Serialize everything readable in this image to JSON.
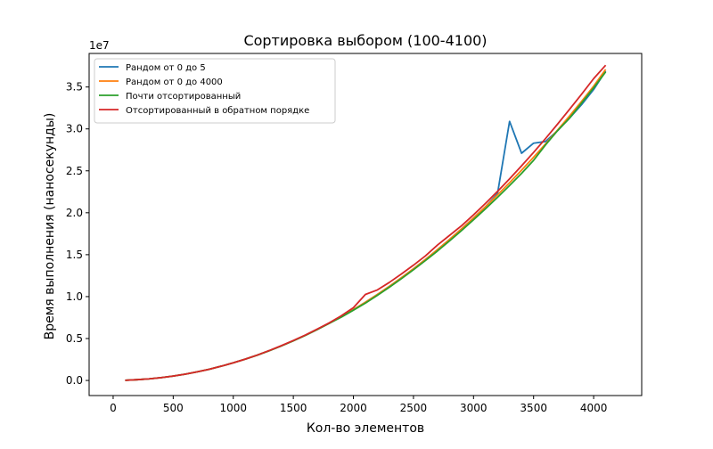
{
  "chart_data": {
    "type": "line",
    "title": "Сортировка выбором (100-4100)",
    "xlabel": "Кол-во элементов",
    "ylabel": "Время выполнения (наносекунды)",
    "y_offset_label": "1e7",
    "y_scale": 10000000,
    "xlim": [
      -200,
      4400
    ],
    "ylim": [
      -1800000,
      39000000
    ],
    "x_ticks": [
      0,
      500,
      1000,
      1500,
      2000,
      2500,
      3000,
      3500,
      4000
    ],
    "x_tick_labels": [
      "0",
      "500",
      "1000",
      "1500",
      "2000",
      "2500",
      "3000",
      "3500",
      "4000"
    ],
    "y_ticks": [
      0,
      5000000,
      10000000,
      15000000,
      20000000,
      25000000,
      30000000,
      35000000
    ],
    "y_tick_labels": [
      "0.0",
      "0.5",
      "1.0",
      "1.5",
      "2.0",
      "2.5",
      "3.0",
      "3.5"
    ],
    "grid": false,
    "legend_position": "upper-left",
    "x": [
      100,
      200,
      300,
      400,
      500,
      600,
      700,
      800,
      900,
      1000,
      1100,
      1200,
      1300,
      1400,
      1500,
      1600,
      1700,
      1800,
      1900,
      2000,
      2100,
      2200,
      2300,
      2400,
      2500,
      2600,
      2700,
      2800,
      2900,
      3000,
      3100,
      3200,
      3300,
      3400,
      3500,
      3600,
      3700,
      3800,
      3900,
      4000,
      4100
    ],
    "series": [
      {
        "name": "Рандом от 0 до 5",
        "color": "#1f77b4",
        "values": [
          20000,
          90000,
          190000,
          340000,
          520000,
          750000,
          1030000,
          1340000,
          1700000,
          2100000,
          2540000,
          3020000,
          3550000,
          4120000,
          4730000,
          5380000,
          6080000,
          6820000,
          7610000,
          8450000,
          9330000,
          10260000,
          11230000,
          12250000,
          13320000,
          14440000,
          15600000,
          16820000,
          18080000,
          19380000,
          20730000,
          22300000,
          30900000,
          27100000,
          28300000,
          28500000,
          29800000,
          31300000,
          32900000,
          34700000,
          36900000
        ]
      },
      {
        "name": "Рандом от 0 до 4000",
        "color": "#ff7f0e",
        "values": [
          20000,
          90000,
          190000,
          340000,
          520000,
          750000,
          1030000,
          1340000,
          1700000,
          2100000,
          2540000,
          3020000,
          3550000,
          4120000,
          4730000,
          5380000,
          6080000,
          6820000,
          7610000,
          8450000,
          9330000,
          10260000,
          11230000,
          12250000,
          13320000,
          14440000,
          15600000,
          16820000,
          18080000,
          19380000,
          20730000,
          22130000,
          23580000,
          25080000,
          26620000,
          28220000,
          29860000,
          31560000,
          33300000,
          35100000,
          37100000
        ]
      },
      {
        "name": "Почти отсортированный",
        "color": "#2ca02c",
        "values": [
          20000,
          90000,
          190000,
          340000,
          520000,
          750000,
          1030000,
          1340000,
          1700000,
          2100000,
          2540000,
          3020000,
          3550000,
          4120000,
          4730000,
          5380000,
          6080000,
          6820000,
          7560000,
          8380000,
          9220000,
          10150000,
          11120000,
          12140000,
          13200000,
          14300000,
          15440000,
          16640000,
          17880000,
          19160000,
          20480000,
          21840000,
          23250000,
          24700000,
          26250000,
          28100000,
          29800000,
          31300000,
          33100000,
          34900000,
          36800000
        ]
      },
      {
        "name": "Отсортированный в обратном порядке",
        "color": "#d62728",
        "values": [
          20000,
          90000,
          190000,
          340000,
          520000,
          750000,
          1030000,
          1340000,
          1700000,
          2100000,
          2540000,
          3030000,
          3570000,
          4150000,
          4770000,
          5420000,
          6130000,
          6880000,
          7720000,
          8680000,
          10260000,
          10800000,
          11700000,
          12700000,
          13750000,
          14860000,
          16150000,
          17300000,
          18450000,
          19750000,
          21120000,
          22550000,
          24050000,
          25600000,
          27200000,
          28860000,
          30580000,
          32350000,
          34150000,
          36000000,
          37600000
        ]
      }
    ]
  }
}
